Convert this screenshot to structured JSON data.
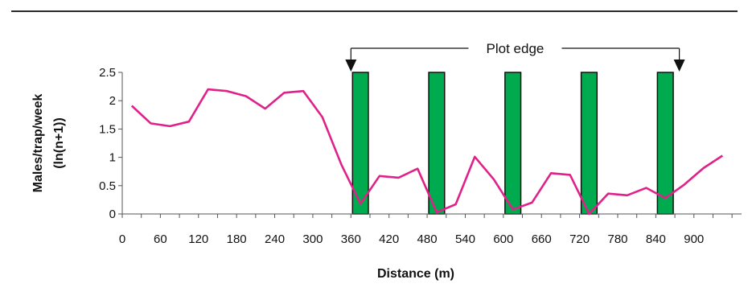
{
  "chart_data": {
    "type": "line",
    "xlabel": "Distance (m)",
    "ylabel_line1": "Males/trap/week",
    "ylabel_line2": "(ln(n+1))",
    "xlim": [
      0,
      975
    ],
    "ylim": [
      0,
      2.5
    ],
    "x_ticks": [
      0,
      60,
      120,
      180,
      240,
      300,
      360,
      420,
      480,
      540,
      600,
      660,
      720,
      780,
      840,
      900
    ],
    "y_ticks": [
      0,
      0.5,
      1,
      1.5,
      2,
      2.5
    ],
    "y_tick_labels": [
      "0",
      "0.5",
      "1",
      "1.5",
      "2",
      "2.5"
    ],
    "series": [
      {
        "color": "#e0218a",
        "x": [
          15,
          45,
          75,
          105,
          135,
          165,
          195,
          225,
          255,
          285,
          315,
          345,
          375,
          405,
          435,
          465,
          495,
          525,
          555,
          585,
          615,
          645,
          675,
          705,
          735,
          765,
          795,
          825,
          855,
          885,
          915,
          945
        ],
        "y": [
          1.91,
          1.6,
          1.55,
          1.63,
          2.2,
          2.17,
          2.08,
          1.86,
          2.14,
          2.17,
          1.71,
          0.87,
          0.18,
          0.67,
          0.64,
          0.8,
          0.03,
          0.17,
          1.01,
          0.61,
          0.08,
          0.2,
          0.72,
          0.69,
          0.0,
          0.36,
          0.33,
          0.46,
          0.28,
          0.52,
          0.81,
          1.03
        ]
      }
    ],
    "bars": {
      "color": "#00aa4e",
      "x_centers": [
        375,
        495,
        615,
        735,
        855
      ],
      "width": 30,
      "height": 2.5
    },
    "annotation": {
      "text": "Plot edge",
      "from_x": 360,
      "to_x": 877
    },
    "grid": false,
    "legend": "none"
  }
}
